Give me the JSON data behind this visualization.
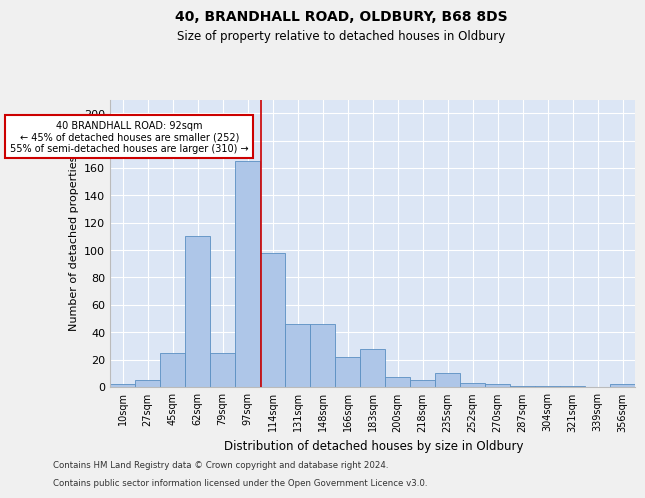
{
  "title1": "40, BRANDHALL ROAD, OLDBURY, B68 8DS",
  "title2": "Size of property relative to detached houses in Oldbury",
  "xlabel": "Distribution of detached houses by size in Oldbury",
  "ylabel": "Number of detached properties",
  "bin_labels": [
    "10sqm",
    "27sqm",
    "45sqm",
    "62sqm",
    "79sqm",
    "97sqm",
    "114sqm",
    "131sqm",
    "148sqm",
    "166sqm",
    "183sqm",
    "200sqm",
    "218sqm",
    "235sqm",
    "252sqm",
    "270sqm",
    "287sqm",
    "304sqm",
    "321sqm",
    "339sqm",
    "356sqm"
  ],
  "bar_values": [
    2,
    5,
    25,
    110,
    25,
    165,
    98,
    46,
    46,
    22,
    28,
    7,
    5,
    10,
    3,
    2,
    1,
    1,
    1,
    0,
    2
  ],
  "bar_color": "#aec6e8",
  "bar_edge_color": "#5a8fc2",
  "background_color": "#dce6f5",
  "grid_color": "#ffffff",
  "vline_x": 5.55,
  "vline_color": "#cc0000",
  "annotation_text": "40 BRANDHALL ROAD: 92sqm\n← 45% of detached houses are smaller (252)\n55% of semi-detached houses are larger (310) →",
  "annotation_box_color": "#ffffff",
  "annotation_box_edge_color": "#cc0000",
  "footnote1": "Contains HM Land Registry data © Crown copyright and database right 2024.",
  "footnote2": "Contains public sector information licensed under the Open Government Licence v3.0.",
  "ylim": [
    0,
    210
  ],
  "yticks": [
    0,
    20,
    40,
    60,
    80,
    100,
    120,
    140,
    160,
    180,
    200
  ]
}
